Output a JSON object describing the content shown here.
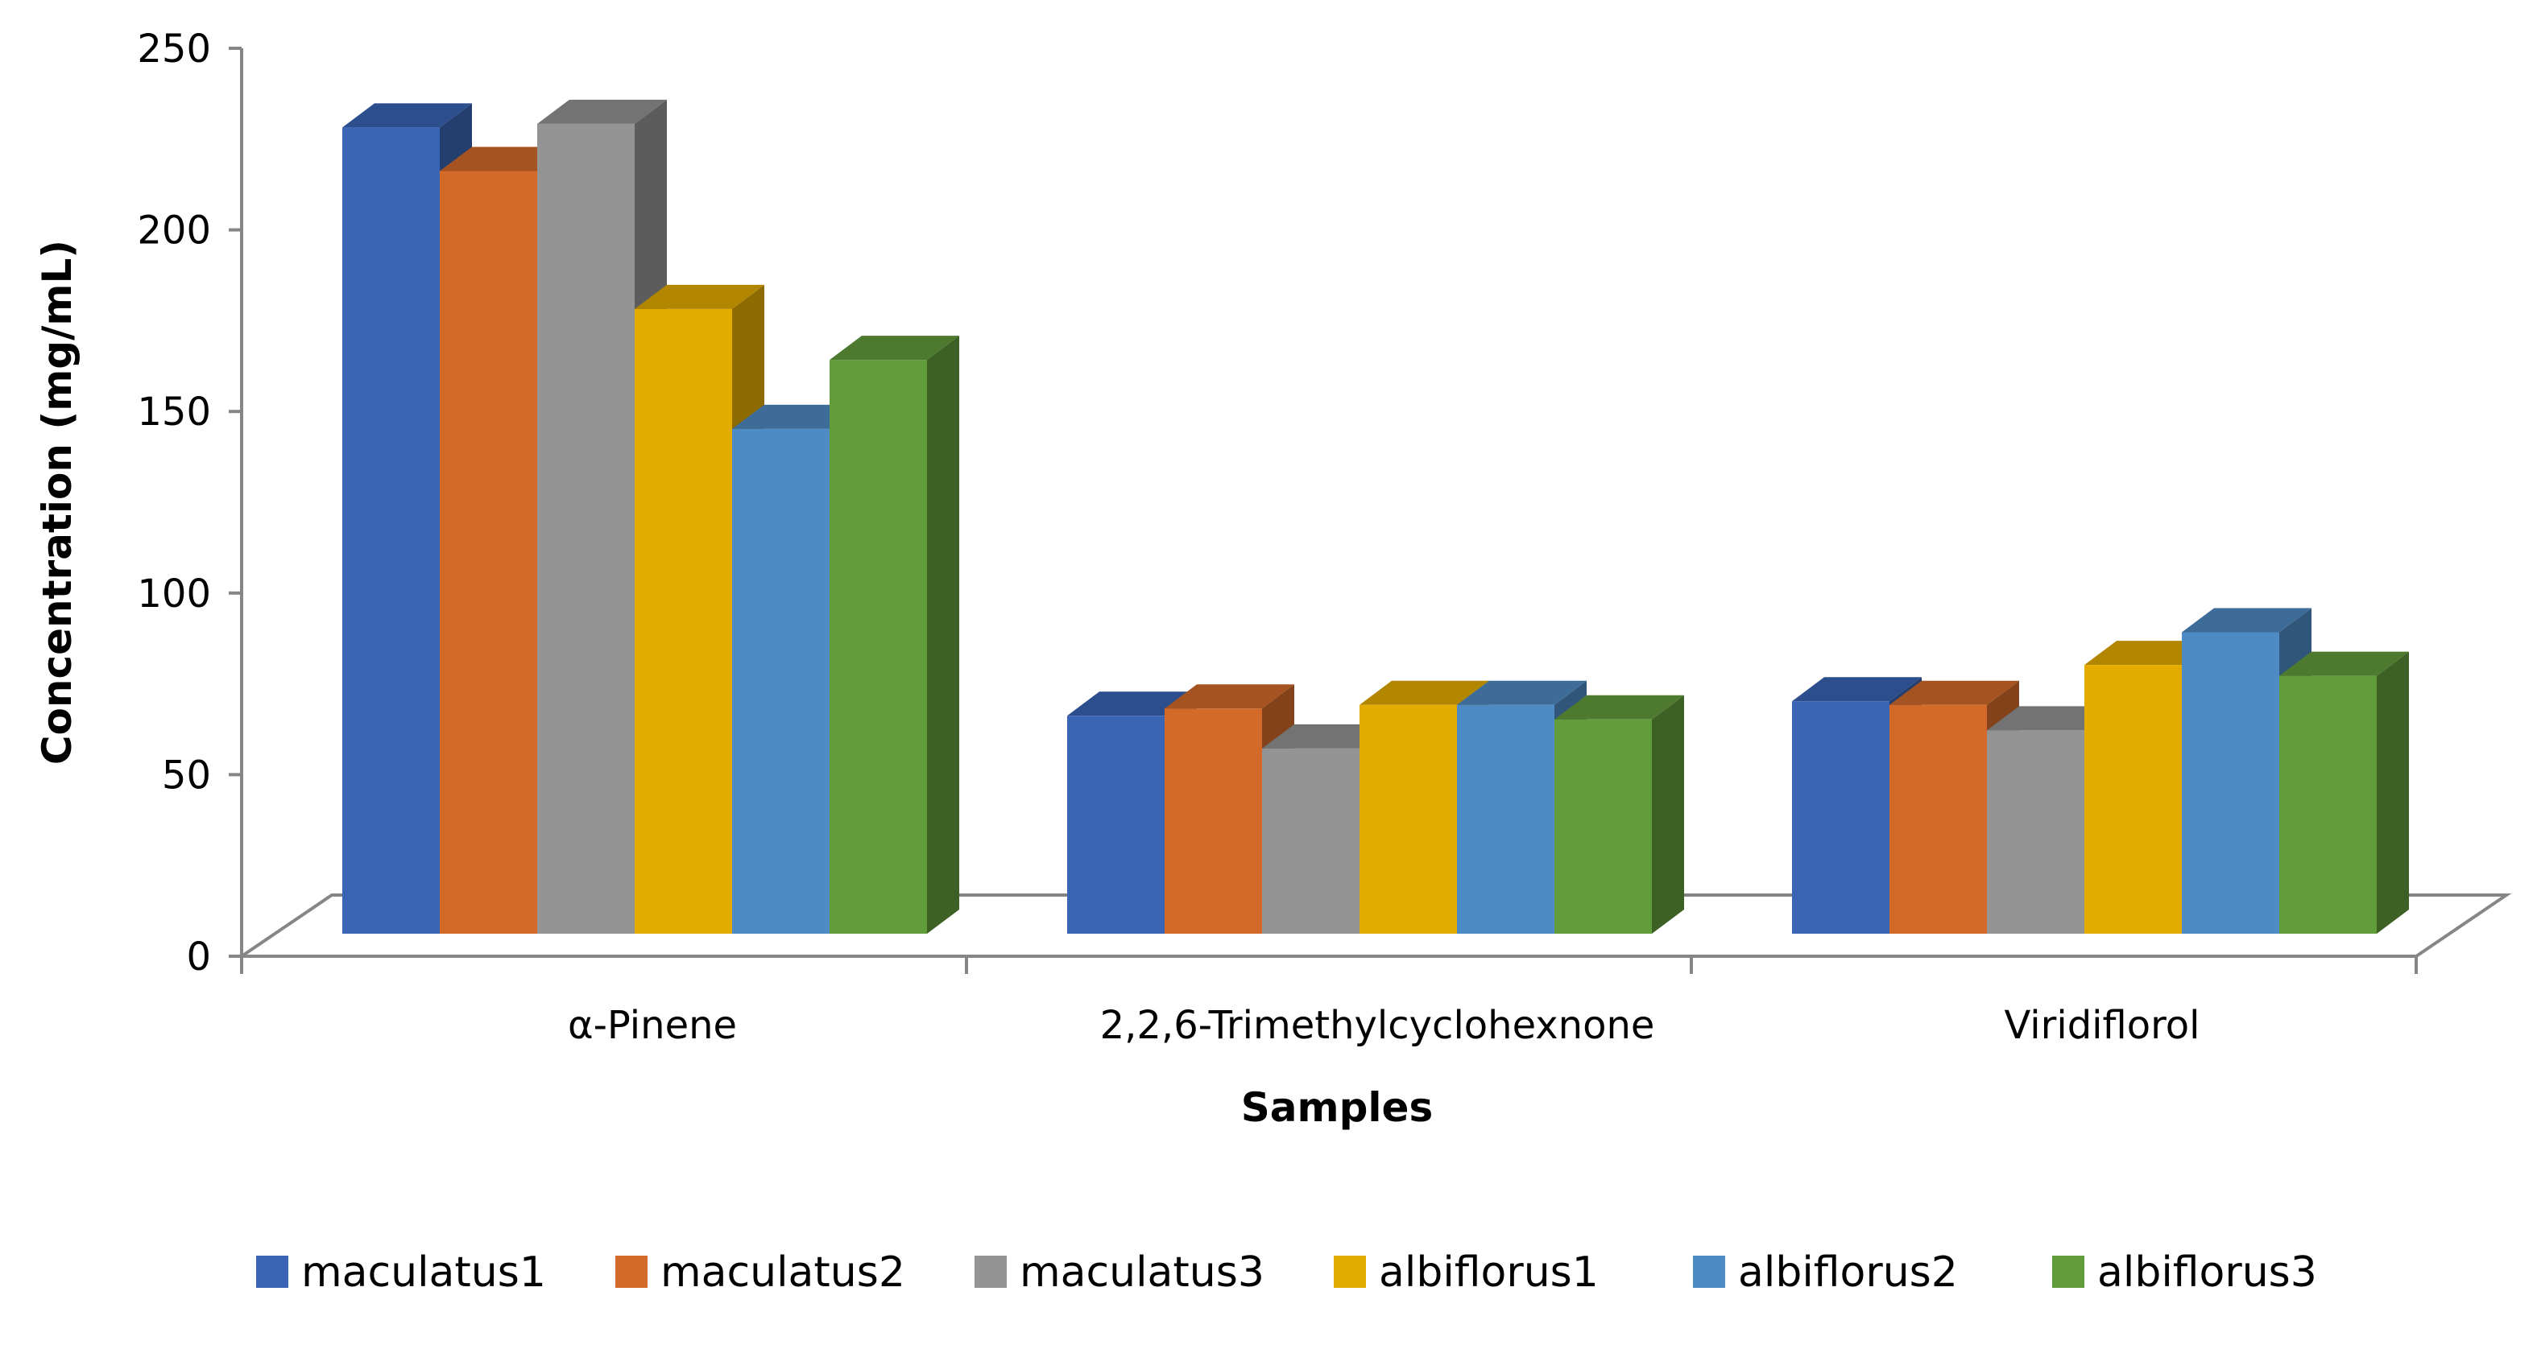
{
  "chart_data": {
    "type": "bar",
    "style": "3d-clustered-column",
    "title": "",
    "xlabel": "Samples",
    "ylabel": "Concentration (mg/mL)",
    "ylim": [
      0,
      250
    ],
    "yticks": [
      "0",
      "50",
      "100",
      "150",
      "200",
      "250"
    ],
    "categories": [
      "α-Pinene",
      "2,2,6-Trimethylcyclohexnone",
      "Viridiflorol"
    ],
    "series": [
      {
        "name": "maculatus1",
        "color": "#3A64B4",
        "values": [
          222,
          60,
          64
        ]
      },
      {
        "name": "maculatus2",
        "color": "#D36A29",
        "values": [
          210,
          62,
          63
        ]
      },
      {
        "name": "maculatus3",
        "color": "#949494",
        "values": [
          223,
          51,
          56
        ]
      },
      {
        "name": "albiflorus1",
        "color": "#E5AC00",
        "values": [
          172,
          63,
          74
        ]
      },
      {
        "name": "albiflorus2",
        "color": "#4E8AC4",
        "values": [
          139,
          63,
          83
        ]
      },
      {
        "name": "albiflorus3",
        "color": "#639C3B",
        "values": [
          158,
          59,
          71
        ]
      }
    ],
    "grid": false,
    "legend_position": "bottom"
  }
}
